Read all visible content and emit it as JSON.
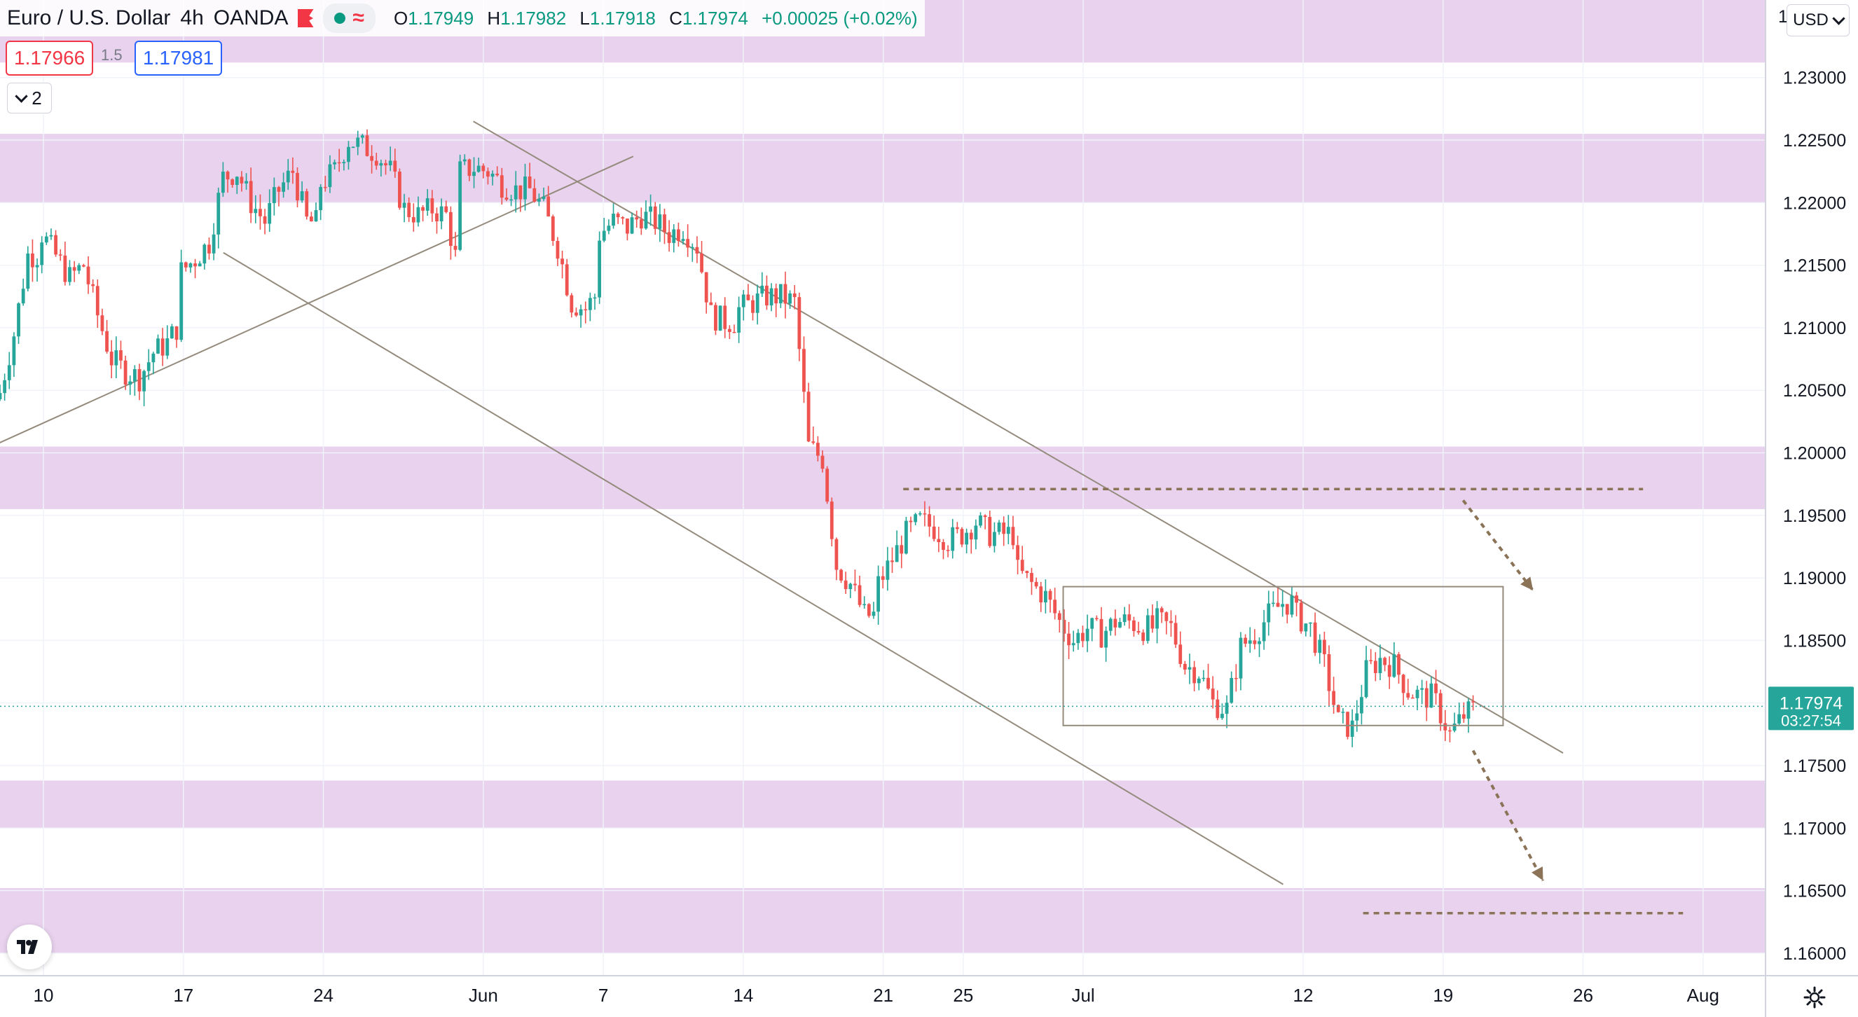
{
  "header": {
    "symbol_title": "Euro / U.S. Dollar",
    "interval": "4h",
    "broker": "OANDA",
    "ohlc": {
      "o_label": "O",
      "o_value": "1.17949",
      "h_label": "H",
      "h_value": "1.17982",
      "l_label": "L",
      "l_value": "1.17918",
      "c_label": "C",
      "c_value": "1.17974",
      "change": "+0.00025 (+0.02%)"
    },
    "bid_price": "1.17966",
    "spread": "1.5",
    "ask_price": "1.17981",
    "indicators_count": "2"
  },
  "price_scale": {
    "currency": "USD",
    "current_price": "1.17974",
    "countdown": "03:27:54",
    "top_partial_label": "1"
  },
  "icons": {
    "flag": "flag-icon",
    "status": "dot-icon",
    "wave": "wave-icon",
    "chevron": "chevron-down-icon",
    "logo": "tradingview-logo",
    "settings": "gear-icon"
  },
  "colors": {
    "up": "#26a69a",
    "down": "#ef5350",
    "zone": "#e8d2ee",
    "trendline": "#948b7c",
    "annotation": "#8b7358",
    "current_price_bg": "#26a69a"
  },
  "chart_data": {
    "type": "candlestick",
    "symbol": "Euro / U.S. Dollar",
    "interval": "4h",
    "y_axis": {
      "ylim": [
        1.1582,
        1.2362
      ],
      "ticks": [
        "1.23000",
        "1.22500",
        "1.22000",
        "1.21500",
        "1.21000",
        "1.20500",
        "1.20000",
        "1.19500",
        "1.19000",
        "1.18500",
        "1.18000",
        "1.17500",
        "1.17000",
        "1.16500",
        "1.16000"
      ]
    },
    "x_axis": {
      "ticks": [
        "10",
        "17",
        "24",
        "Jun",
        "7",
        "14",
        "21",
        "25",
        "Jul",
        "12",
        "19",
        "26",
        "Aug"
      ]
    },
    "current_price": 1.17974,
    "zones": [
      {
        "from": 1.2312,
        "to": 1.2362
      },
      {
        "from": 1.22,
        "to": 1.2255
      },
      {
        "from": 1.1955,
        "to": 1.2005
      },
      {
        "from": 1.17,
        "to": 1.1738
      },
      {
        "from": 1.16,
        "to": 1.1652
      }
    ],
    "annotations": {
      "upper_channel_line": [
        [
          "May 31 12:00",
          1.2265
        ],
        [
          "Jul 25 00:00",
          1.176
        ]
      ],
      "lower_channel_line": [
        [
          "May 19 00:00",
          1.216
        ],
        [
          "Jul 11 00:00",
          1.1655
        ]
      ],
      "rising_trendline": [
        [
          "May 6 00:00",
          1.1995
        ],
        [
          "Jun 8 12:00",
          1.2237
        ]
      ],
      "consolidation_box": {
        "from": "Jun 30 00:00",
        "to": "Jul 22 00:00",
        "low": 1.1782,
        "high": 1.1893
      },
      "resistance_level": {
        "from": "Jun 22 00:00",
        "to": "Jul 29 00:00",
        "price": 1.1971
      },
      "target_level": {
        "from": "Jul 15 00:00",
        "to": "Jul 31 00:00",
        "price": 1.1632
      },
      "arrows": [
        {
          "from": [
            "Jul 20 00:00",
            1.1962
          ],
          "to": [
            "Jul 23 12:00",
            1.189
          ]
        },
        {
          "from": [
            "Jul 20 12:00",
            1.1762
          ],
          "to": [
            "Jul 24 00:00",
            1.1658
          ]
        }
      ]
    },
    "close_path": [
      [
        "May 6 12:00",
        1.2048
      ],
      [
        "May 7 00:00",
        1.2095
      ],
      [
        "May 7 12:00",
        1.2158
      ],
      [
        "May 9 00:00",
        1.216
      ],
      [
        "May 10 00:00",
        1.2175
      ],
      [
        "May 11 00:00",
        1.214
      ],
      [
        "May 11 12:00",
        1.215
      ],
      [
        "May 12 00:00",
        1.211
      ],
      [
        "May 12 12:00",
        1.2075
      ],
      [
        "May 13 00:00",
        1.2065
      ],
      [
        "May 13 12:00",
        1.206
      ],
      [
        "May 14 00:00",
        1.208
      ],
      [
        "May 14 12:00",
        1.2088
      ],
      [
        "May 16 00:00",
        1.214
      ],
      [
        "May 17 00:00",
        1.2145
      ],
      [
        "May 17 12:00",
        1.2155
      ],
      [
        "May 18 00:00",
        1.2168
      ],
      [
        "May 18 12:00",
        1.222
      ],
      [
        "May 19 00:00",
        1.2225
      ],
      [
        "May 19 12:00",
        1.22
      ],
      [
        "May 20 00:00",
        1.2185
      ],
      [
        "May 20 12:00",
        1.221
      ],
      [
        "May 21 00:00",
        1.2225
      ],
      [
        "May 21 12:00",
        1.2185
      ],
      [
        "May 23 00:00",
        1.218
      ],
      [
        "May 24 00:00",
        1.2215
      ],
      [
        "May 24 12:00",
        1.2225
      ],
      [
        "May 25 00:00",
        1.225
      ],
      [
        "May 25 12:00",
        1.2245
      ],
      [
        "May 26 00:00",
        1.224
      ],
      [
        "May 26 12:00",
        1.2225
      ],
      [
        "May 27 00:00",
        1.2195
      ],
      [
        "May 27 12:00",
        1.219
      ],
      [
        "May 28 00:00",
        1.2195
      ],
      [
        "May 28 12:00",
        1.219
      ],
      [
        "May 29 00:00",
        1.214
      ],
      [
        "May 30 00:00",
        1.2195
      ],
      [
        "May 31 00:00",
        1.2225
      ],
      [
        "May 31 12:00",
        1.2228
      ],
      [
        "Jun 1 00:00",
        1.2225
      ],
      [
        "Jun 1 12:00",
        1.2215
      ],
      [
        "Jun 2 00:00",
        1.221
      ],
      [
        "Jun 2 12:00",
        1.221
      ],
      [
        "Jun 3 00:00",
        1.2195
      ],
      [
        "Jun 3 12:00",
        1.2165
      ],
      [
        "Jun 4 00:00",
        1.212
      ],
      [
        "Jun 4 12:00",
        1.2115
      ],
      [
        "Jun 6 00:00",
        1.216
      ],
      [
        "Jun 7 00:00",
        1.2175
      ],
      [
        "Jun 7 12:00",
        1.2185
      ],
      [
        "Jun 8 00:00",
        1.218
      ],
      [
        "Jun 8 12:00",
        1.219
      ],
      [
        "Jun 9 00:00",
        1.2185
      ],
      [
        "Jun 9 12:00",
        1.2175
      ],
      [
        "Jun 10 00:00",
        1.218
      ],
      [
        "Jun 10 12:00",
        1.2165
      ],
      [
        "Jun 11 00:00",
        1.211
      ],
      [
        "Jun 11 12:00",
        1.2105
      ],
      [
        "Jun 13 00:00",
        1.2105
      ],
      [
        "Jun 14 00:00",
        1.2115
      ],
      [
        "Jun 14 12:00",
        1.212
      ],
      [
        "Jun 15 00:00",
        1.2125
      ],
      [
        "Jun 15 12:00",
        1.2125
      ],
      [
        "Jun 16 00:00",
        1.212
      ],
      [
        "Jun 16 12:00",
        1.2005
      ],
      [
        "Jun 17 00:00",
        1.1995
      ],
      [
        "Jun 17 12:00",
        1.191
      ],
      [
        "Jun 18 00:00",
        1.1895
      ],
      [
        "Jun 18 12:00",
        1.187
      ],
      [
        "Jun 20 00:00",
        1.187
      ],
      [
        "Jun 21 00:00",
        1.1895
      ],
      [
        "Jun 21 12:00",
        1.1915
      ],
      [
        "Jun 22 00:00",
        1.1935
      ],
      [
        "Jun 22 12:00",
        1.1945
      ],
      [
        "Jun 23 00:00",
        1.194
      ],
      [
        "Jun 23 12:00",
        1.193
      ],
      [
        "Jun 24 00:00",
        1.1935
      ],
      [
        "Jun 24 12:00",
        1.1945
      ],
      [
        "Jun 25 00:00",
        1.1935
      ],
      [
        "Jun 25 12:00",
        1.1935
      ],
      [
        "Jun 27 00:00",
        1.1935
      ],
      [
        "Jun 28 00:00",
        1.1905
      ],
      [
        "Jun 28 12:00",
        1.1895
      ],
      [
        "Jun 29 00:00",
        1.1885
      ],
      [
        "Jun 29 12:00",
        1.1865
      ],
      [
        "Jun 30 00:00",
        1.185
      ],
      [
        "Jun 30 12:00",
        1.186
      ],
      [
        "Jul 1 00:00",
        1.1855
      ],
      [
        "Jul 1 12:00",
        1.1865
      ],
      [
        "Jul 2 00:00",
        1.1865
      ],
      [
        "Jul 2 12:00",
        1.186
      ],
      [
        "Jul 4 00:00",
        1.186
      ],
      [
        "Jul 5 00:00",
        1.1865
      ],
      [
        "Jul 5 12:00",
        1.186
      ],
      [
        "Jul 6 00:00",
        1.183
      ],
      [
        "Jul 6 12:00",
        1.1825
      ],
      [
        "Jul 7 00:00",
        1.18
      ],
      [
        "Jul 7 12:00",
        1.1795
      ],
      [
        "Jul 8 00:00",
        1.1845
      ],
      [
        "Jul 8 12:00",
        1.1855
      ],
      [
        "Jul 9 00:00",
        1.187
      ],
      [
        "Jul 9 12:00",
        1.188
      ],
      [
        "Jul 11 00:00",
        1.188
      ],
      [
        "Jul 12 00:00",
        1.187
      ],
      [
        "Jul 12 12:00",
        1.186
      ],
      [
        "Jul 13 00:00",
        1.183
      ],
      [
        "Jul 13 12:00",
        1.1785
      ],
      [
        "Jul 14 00:00",
        1.178
      ],
      [
        "Jul 14 12:00",
        1.1825
      ],
      [
        "Jul 15 00:00",
        1.1835
      ],
      [
        "Jul 15 12:00",
        1.183
      ],
      [
        "Jul 16 00:00",
        1.181
      ],
      [
        "Jul 16 12:00",
        1.1805
      ],
      [
        "Jul 18 00:00",
        1.1805
      ],
      [
        "Jul 19 00:00",
        1.18
      ],
      [
        "Jul 19 12:00",
        1.1775
      ],
      [
        "Jul 20 00:00",
        1.179
      ],
      [
        "Jul 20 12:00",
        1.1797
      ]
    ]
  }
}
